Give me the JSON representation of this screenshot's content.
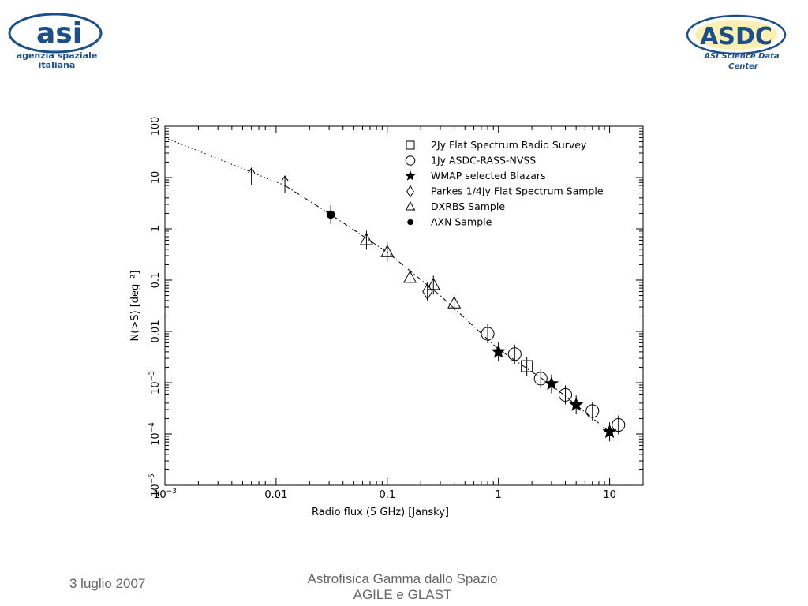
{
  "logos": {
    "left": {
      "mark": "asi",
      "line1": "agenzia spaziale",
      "line2": "italiana",
      "color": "#1b4f8a"
    },
    "right": {
      "mark": "ASDC",
      "line1": "ASI Science Data",
      "line2": "Center",
      "color": "#1b4f8a",
      "accent": "#f4d21f"
    }
  },
  "footer": {
    "date": "3 luglio 2007",
    "title_line1": "Astrofisica Gamma dallo Spazio",
    "title_line2": "AGILE e GLAST"
  },
  "chart_data": {
    "type": "scatter",
    "xscale": "log",
    "yscale": "log",
    "xlim": [
      0.001,
      20
    ],
    "ylim": [
      1e-05,
      100
    ],
    "xlabel": "Radio flux (5 GHz) [Jansky]",
    "ylabel": "N(>S) [deg⁻²]",
    "xticks": [
      {
        "value": 0.001,
        "base": "10",
        "exp": "−3"
      },
      {
        "value": 0.01,
        "label": "0.01"
      },
      {
        "value": 0.1,
        "label": "0.1"
      },
      {
        "value": 1,
        "label": "1"
      },
      {
        "value": 10,
        "label": "10"
      }
    ],
    "yticks": [
      {
        "value": 1e-05,
        "base": "10",
        "exp": "−5"
      },
      {
        "value": 0.0001,
        "base": "10",
        "exp": "−4"
      },
      {
        "value": 0.001,
        "base": "10",
        "exp": "−3"
      },
      {
        "value": 0.01,
        "label": "0.01"
      },
      {
        "value": 0.1,
        "label": "0.1"
      },
      {
        "value": 1,
        "label": "1"
      },
      {
        "value": 10,
        "label": "10"
      },
      {
        "value": 100,
        "label": "100"
      }
    ],
    "legend_position": "top-right",
    "series": [
      {
        "name": "2Jy Flat Spectrum Radio Survey",
        "marker": "square",
        "points": [
          [
            1.8,
            0.0021
          ]
        ]
      },
      {
        "name": "1Jy ASDC-RASS-NVSS",
        "marker": "circle",
        "points": [
          [
            0.8,
            0.009
          ],
          [
            1.4,
            0.0036
          ],
          [
            2.4,
            0.0012
          ],
          [
            4.0,
            0.00058
          ],
          [
            7.0,
            0.00028
          ],
          [
            12,
            0.00015
          ]
        ]
      },
      {
        "name": "WMAP selected Blazars",
        "marker": "star",
        "points": [
          [
            1.0,
            0.004
          ],
          [
            3.0,
            0.00095
          ],
          [
            5.0,
            0.00037
          ],
          [
            10,
            0.00011
          ]
        ]
      },
      {
        "name": "Parkes 1/4Jy Flat Spectrum Sample",
        "marker": "diamond",
        "points": [
          [
            0.23,
            0.06
          ]
        ]
      },
      {
        "name": "DXRBS Sample",
        "marker": "triangle",
        "points": [
          [
            0.065,
            0.6
          ],
          [
            0.1,
            0.35
          ],
          [
            0.16,
            0.11
          ],
          [
            0.26,
            0.08
          ],
          [
            0.4,
            0.035
          ]
        ]
      },
      {
        "name": "AXN Sample",
        "marker": "dot",
        "points": [
          [
            0.031,
            1.9
          ]
        ]
      }
    ],
    "upper_arrows": [
      [
        0.006,
        10
      ],
      [
        0.012,
        7
      ]
    ],
    "dotted_line": [
      [
        0.001,
        60
      ],
      [
        0.012,
        7
      ]
    ],
    "dashdot_line": [
      [
        0.012,
        7
      ],
      [
        0.031,
        1.9
      ],
      [
        0.1,
        0.35
      ],
      [
        0.3,
        0.05
      ],
      [
        1.0,
        0.0045
      ],
      [
        3.0,
        0.0009
      ],
      [
        10,
        0.00011
      ]
    ]
  }
}
